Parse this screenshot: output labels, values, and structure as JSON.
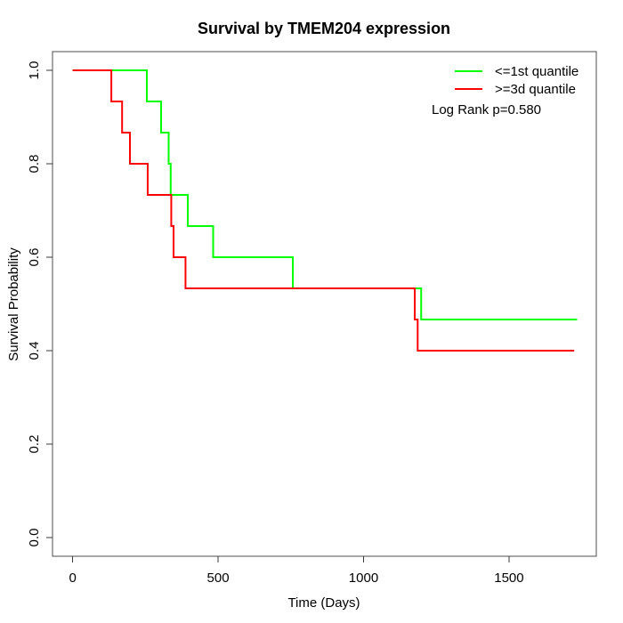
{
  "chart_data": {
    "type": "line",
    "subtype": "kaplan-meier-step",
    "title": "Survival by TMEM204 expression",
    "xlabel": "Time (Days)",
    "ylabel": "Survival Probability",
    "x_tick_values": [
      0,
      500,
      1000,
      1500
    ],
    "x_tick_labels": [
      "0",
      "500",
      "1000",
      "1500"
    ],
    "y_tick_values": [
      0.0,
      0.2,
      0.4,
      0.6,
      0.8,
      1.0
    ],
    "y_tick_labels": [
      "0.0",
      "0.2",
      "0.4",
      "0.6",
      "0.8",
      "1.0"
    ],
    "xlim_usr": [
      -69.2,
      1800
    ],
    "ylim_usr": [
      -0.04,
      1.04
    ],
    "grid": false,
    "legend_position": "top-right",
    "annotation": "Log Rank p=0.580",
    "series": [
      {
        "name": "<=1st quantile",
        "color": "#00ff00",
        "points": [
          [
            0,
            1.0
          ],
          [
            255,
            0.9333
          ],
          [
            304,
            0.8667
          ],
          [
            330,
            0.8
          ],
          [
            337,
            0.7333
          ],
          [
            396,
            0.6667
          ],
          [
            483,
            0.6
          ],
          [
            757,
            0.5333
          ],
          [
            1198,
            0.4667
          ]
        ],
        "end_time": 1734
      },
      {
        "name": ">=3d quantile",
        "color": "#ff0000",
        "points": [
          [
            0,
            1.0
          ],
          [
            133,
            0.9333
          ],
          [
            170,
            0.8667
          ],
          [
            197,
            0.8
          ],
          [
            258,
            0.7333
          ],
          [
            339,
            0.6667
          ],
          [
            347,
            0.6
          ],
          [
            388,
            0.5333
          ],
          [
            1176,
            0.4667
          ],
          [
            1186,
            0.4
          ]
        ],
        "end_time": 1724
      }
    ]
  }
}
